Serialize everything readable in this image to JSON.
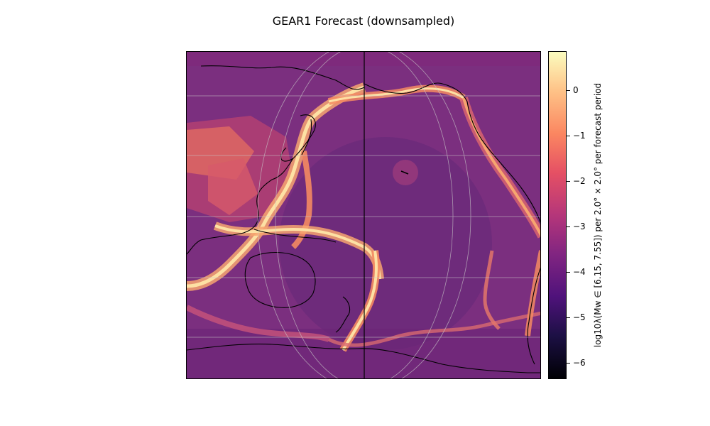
{
  "figure": {
    "title": "GEAR1 Forecast (downsampled)"
  },
  "colorbar": {
    "label": "log10λ(Mw ∈ [6.15, 7.55]) per 2.0° × 2.0° per forecast period",
    "ticks": [
      "0",
      "−1",
      "−2",
      "−3",
      "−4",
      "−5",
      "−6"
    ],
    "colormap": "magma",
    "range": [
      -6.3,
      0.8
    ]
  },
  "map": {
    "projection": "mollweide-like, Pacific-centred",
    "background_color": "#7b2f7f",
    "high_activity_color": "#fbd68e",
    "low_activity_color": "#4c1d6a",
    "coastline_color": "#000000",
    "graticule": "on"
  }
}
